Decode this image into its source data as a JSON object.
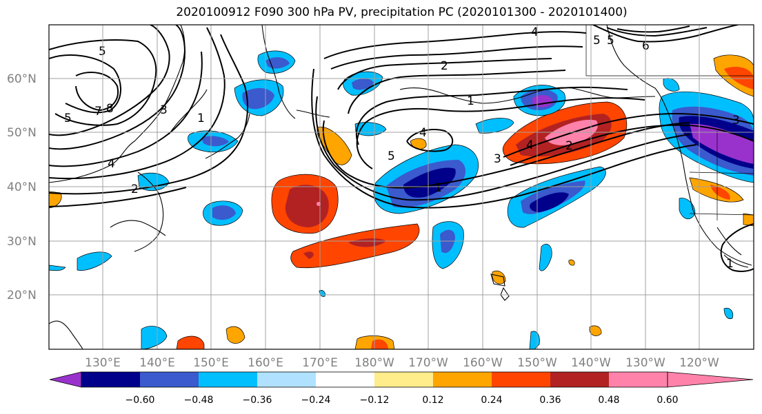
{
  "title": "2020100912 F090 300 hPa PV, precipitation PC (2020101300 - 2020101400)",
  "map": {
    "lat_labels": [
      "60°N",
      "50°N",
      "40°N",
      "30°N",
      "20°N"
    ],
    "lon_labels": [
      "130°E",
      "140°E",
      "150°E",
      "160°E",
      "170°E",
      "180°W",
      "170°W",
      "160°W",
      "150°W",
      "140°W",
      "130°W",
      "120°W"
    ],
    "pv_contour_labels": [
      "5",
      "5",
      "8",
      "7",
      "4",
      "3",
      "1",
      "2",
      "2",
      "1",
      "5",
      "4",
      "4",
      "3",
      "2",
      "1",
      "6",
      "5",
      "4",
      "5",
      "1",
      "3"
    ],
    "gridline_color": "#a0a0a0",
    "coastline_color": "#000000",
    "tick_label_color": "#808080"
  },
  "colorbar": {
    "colors": [
      "#9932cc",
      "#00008b",
      "#3a5acd",
      "#00bfff",
      "#b0e2ff",
      "#ffffff",
      "#ffec8b",
      "#ffa500",
      "#ff4500",
      "#b22222",
      "#ff82ab"
    ],
    "tick_labels": [
      "−0.60",
      "−0.48",
      "−0.36",
      "−0.24",
      "−0.12",
      "0.12",
      "0.24",
      "0.36",
      "0.48",
      "0.60"
    ]
  }
}
